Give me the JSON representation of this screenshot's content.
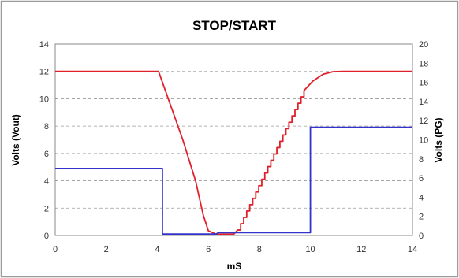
{
  "chart_data": {
    "type": "line",
    "title": "STOP/START",
    "xlabel": "mS",
    "ylabel_left": "Volts (Vout)",
    "ylabel_right": "Volts (PG)",
    "xlim": [
      0,
      14
    ],
    "ylim_left": [
      0,
      14
    ],
    "ylim_right": [
      0,
      20
    ],
    "x_ticks": [
      "0",
      "2",
      "4",
      "6",
      "8",
      "10",
      "12",
      "14"
    ],
    "y_left_ticks": [
      "0",
      "2",
      "4",
      "6",
      "8",
      "10",
      "12",
      "14"
    ],
    "y_right_ticks": [
      "0",
      "2",
      "4",
      "6",
      "8",
      "10",
      "12",
      "14",
      "16",
      "18",
      "20"
    ],
    "grid": "horizontal dashed",
    "series": [
      {
        "axis": "left",
        "color": "#e0202a",
        "style": "staircase on rising edge",
        "points": [
          [
            0,
            12
          ],
          [
            4.05,
            12
          ],
          [
            5.0,
            7.0
          ],
          [
            5.5,
            4.0
          ],
          [
            5.8,
            1.5
          ],
          [
            6.0,
            0.35
          ],
          [
            6.3,
            0.1
          ],
          [
            7.0,
            0.1
          ],
          [
            7.15,
            0.4
          ],
          [
            9.75,
            10.6
          ],
          [
            10.1,
            11.3
          ],
          [
            10.5,
            11.8
          ],
          [
            10.9,
            11.98
          ],
          [
            11.3,
            12
          ],
          [
            14,
            12
          ]
        ]
      },
      {
        "axis": "right",
        "color": "#3333cc",
        "style": "step",
        "points": [
          [
            0,
            7.0
          ],
          [
            4.2,
            7.0
          ],
          [
            4.2,
            0.15
          ],
          [
            6.3,
            0.15
          ],
          [
            6.4,
            0.3
          ],
          [
            10.0,
            0.3
          ],
          [
            10.0,
            11.3
          ],
          [
            14,
            11.3
          ]
        ]
      }
    ]
  }
}
